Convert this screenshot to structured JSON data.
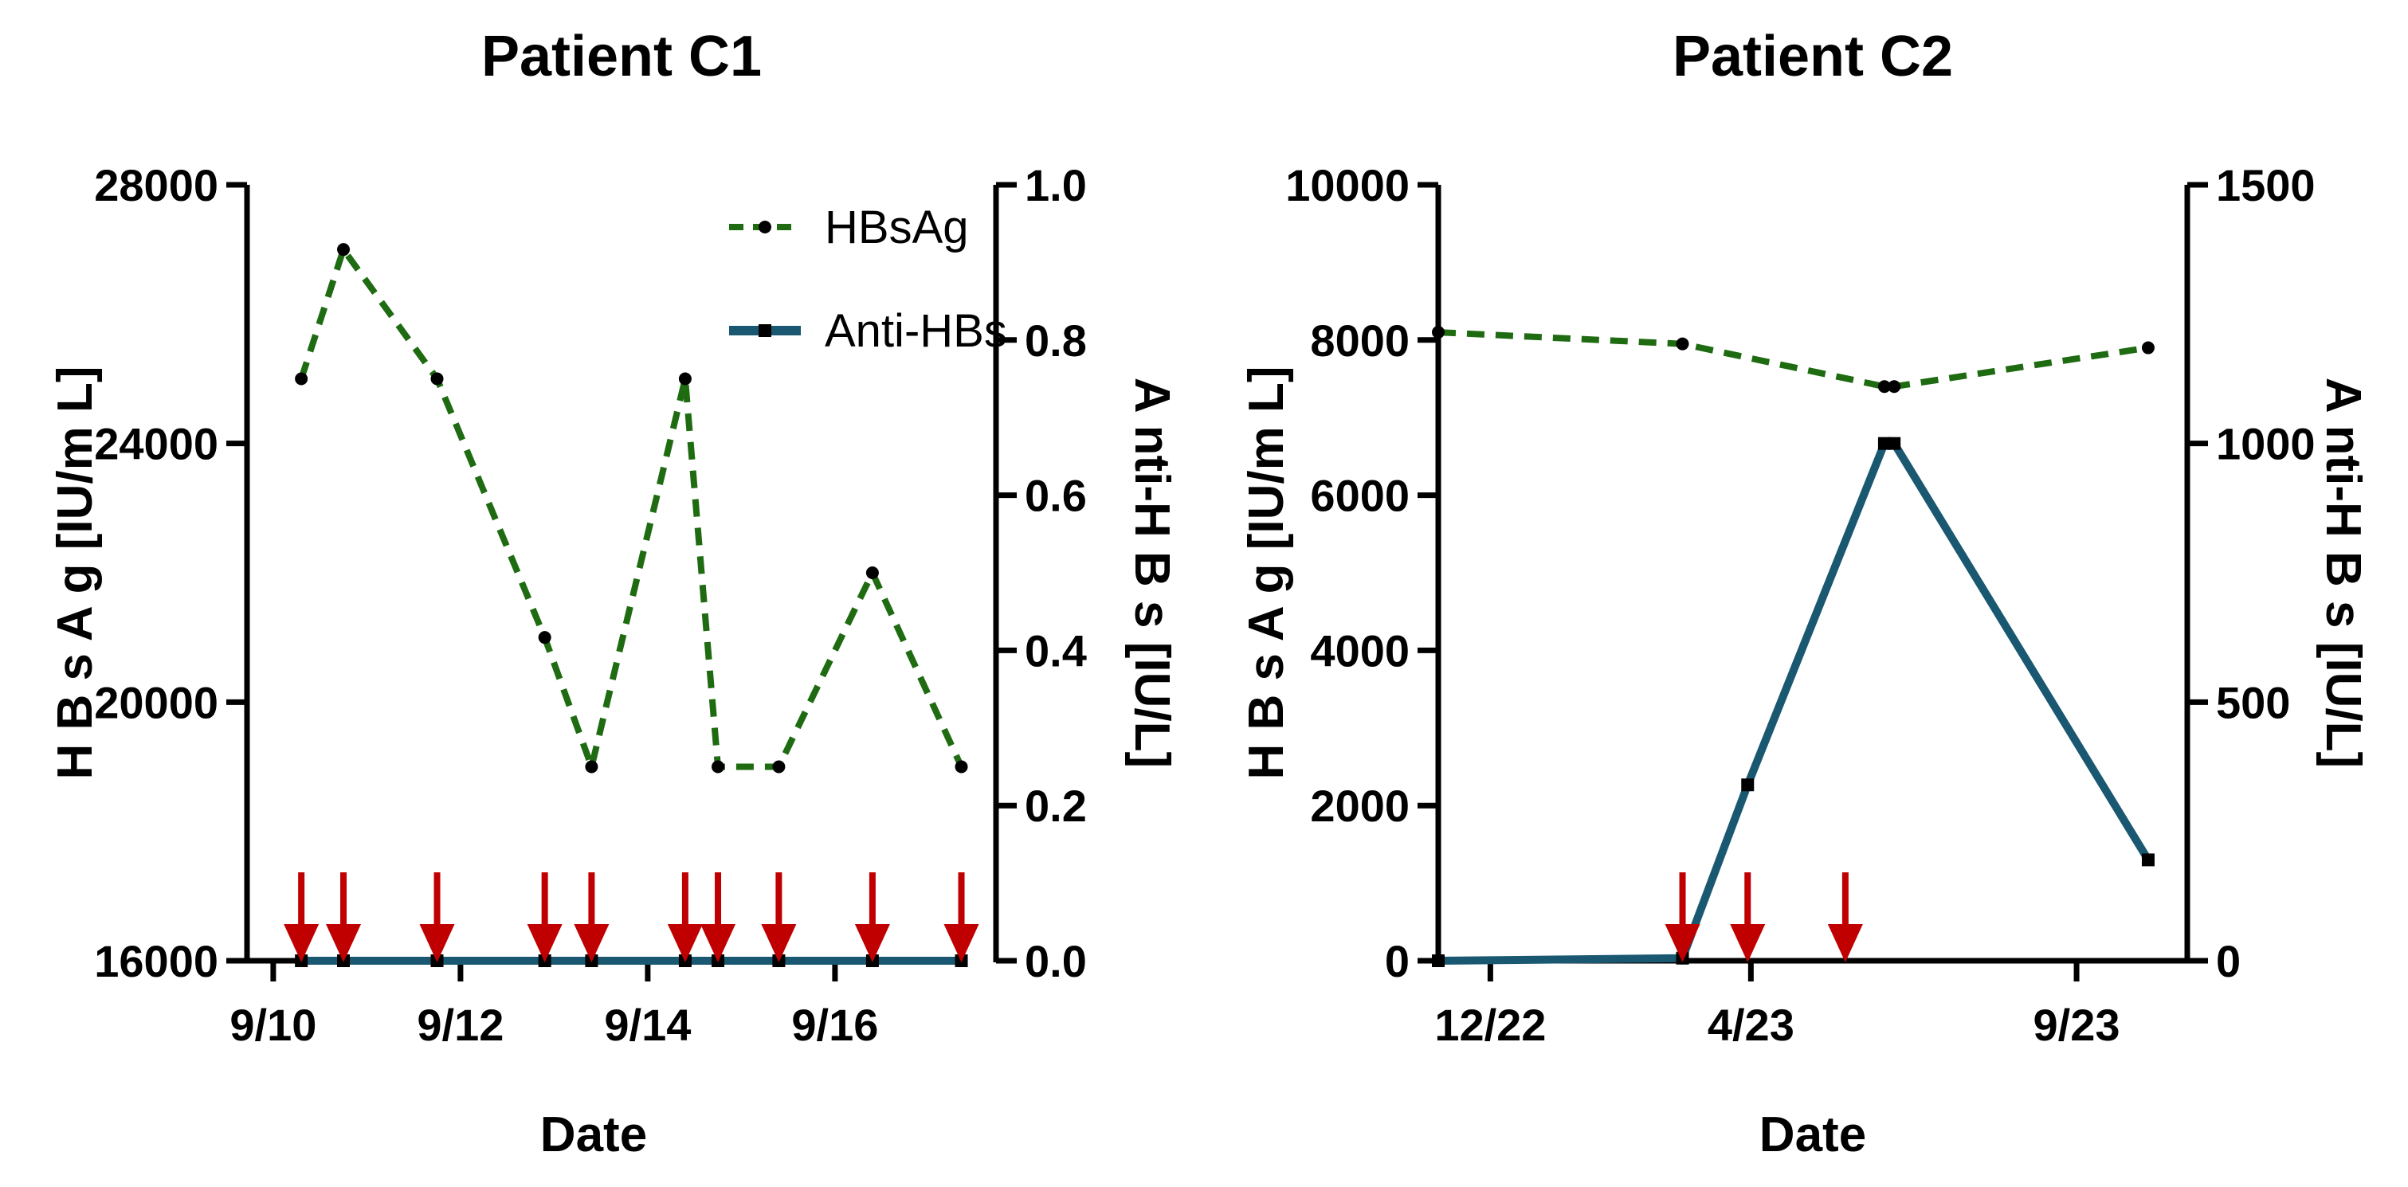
{
  "chart_data": [
    {
      "type": "line",
      "title": "Patient C1",
      "xlabel": "Date",
      "ylabel": "H B s A g  [IU/m L]",
      "y2label": "A nti-H B s  [IU/L]",
      "xticks": [
        "9/10",
        "9/12",
        "9/14",
        "9/16"
      ],
      "xtick_values": [
        0,
        2,
        4,
        6
      ],
      "xlim": [
        -0.28,
        7.72
      ],
      "ylim": [
        16000,
        28000
      ],
      "yticks": [
        16000,
        20000,
        24000,
        28000
      ],
      "y2lim": [
        0,
        1.0
      ],
      "y2ticks": [
        "0.0",
        "0.2",
        "0.4",
        "0.6",
        "0.8",
        "1.0"
      ],
      "y2tick_values": [
        0,
        0.2,
        0.4,
        0.6,
        0.8,
        1.0
      ],
      "legend": {
        "position": "top-right",
        "entries": [
          "HBsAg",
          "Anti-HBs"
        ]
      },
      "series": [
        {
          "name": "HBsAg",
          "axis": "left",
          "color": "#1f6b12",
          "style": "dashed",
          "x": [
            0.3,
            0.75,
            1.75,
            2.9,
            3.4,
            4.4,
            4.75,
            5.4,
            6.4,
            7.35
          ],
          "values": [
            25000,
            27000,
            25000,
            21000,
            19000,
            25000,
            19000,
            19000,
            22000,
            19000
          ]
        },
        {
          "name": "Anti-HBs",
          "axis": "right",
          "color": "#1a5871",
          "style": "solid",
          "x": [
            0.3,
            0.75,
            1.75,
            2.9,
            3.4,
            4.4,
            4.75,
            5.4,
            6.4,
            7.35
          ],
          "values": [
            0,
            0,
            0,
            0,
            0,
            0,
            0,
            0,
            0,
            0
          ]
        }
      ],
      "markers": {
        "name": "arrows",
        "color": "#c00000",
        "x": [
          0.3,
          0.75,
          1.75,
          2.9,
          3.4,
          4.4,
          4.75,
          5.4,
          6.4,
          7.35
        ]
      }
    },
    {
      "type": "line",
      "title": "Patient C2",
      "xlabel": "Date",
      "ylabel": "H B s A g  [IU/m L]",
      "y2label": "A nti-H B s  [IU/L]",
      "xticks": [
        "12/22",
        "4/23",
        "9/23"
      ],
      "xtick_values": [
        0,
        4,
        9
      ],
      "xlim": [
        -0.8,
        10.7
      ],
      "ylim": [
        0,
        10000
      ],
      "yticks": [
        0,
        2000,
        4000,
        6000,
        8000,
        10000
      ],
      "y2lim": [
        0,
        1500
      ],
      "y2ticks": [
        "0",
        "500",
        "1000",
        "1500"
      ],
      "y2tick_values": [
        0,
        500,
        1000,
        1500
      ],
      "legend": null,
      "series": [
        {
          "name": "HBsAg",
          "axis": "left",
          "color": "#1f6b12",
          "style": "dashed",
          "x": [
            -0.8,
            2.95,
            6.05,
            6.2,
            10.1
          ],
          "values": [
            8100,
            7950,
            7400,
            7400,
            7900
          ]
        },
        {
          "name": "Anti-HBs",
          "axis": "right",
          "color": "#1a5871",
          "style": "solid",
          "x": [
            -0.8,
            2.95,
            3.95,
            6.05,
            6.2,
            10.1
          ],
          "values": [
            0,
            5,
            340,
            1000,
            1000,
            195
          ]
        }
      ],
      "markers": {
        "name": "arrows",
        "color": "#c00000",
        "x": [
          2.95,
          3.95,
          5.45
        ]
      }
    }
  ]
}
